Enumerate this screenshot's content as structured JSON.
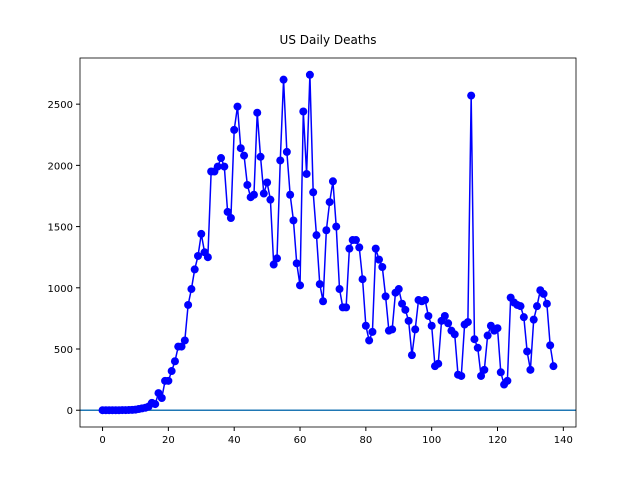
{
  "chart_data": {
    "type": "line",
    "title": "US Daily Deaths",
    "x": [
      0,
      1,
      2,
      3,
      4,
      5,
      6,
      7,
      8,
      9,
      10,
      11,
      12,
      13,
      14,
      15,
      16,
      17,
      18,
      19,
      20,
      21,
      22,
      23,
      24,
      25,
      26,
      27,
      28,
      29,
      30,
      31,
      32,
      33,
      34,
      35,
      36,
      37,
      38,
      39,
      40,
      41,
      42,
      43,
      44,
      45,
      46,
      47,
      48,
      49,
      50,
      51,
      52,
      53,
      54,
      55,
      56,
      57,
      58,
      59,
      60,
      61,
      62,
      63,
      64,
      65,
      66,
      67,
      68,
      69,
      70,
      71,
      72,
      73,
      74,
      75,
      76,
      77,
      78,
      79,
      80,
      81,
      82,
      83,
      84,
      85,
      86,
      87,
      88,
      89,
      90,
      91,
      92,
      93,
      94,
      95,
      96,
      97,
      98,
      99,
      100,
      101,
      102,
      103,
      104,
      105,
      106,
      107,
      108,
      109,
      110,
      111,
      112,
      113,
      114,
      115,
      116,
      117,
      118,
      119,
      120,
      121,
      122,
      123,
      124,
      125,
      126,
      127,
      128,
      129,
      130,
      131,
      132,
      133,
      134,
      135,
      136,
      137
    ],
    "series": [
      {
        "name": "US Daily Deaths",
        "color": "#0000ff",
        "values": [
          0,
          0,
          0,
          0,
          0,
          0,
          1,
          1,
          2,
          3,
          5,
          10,
          15,
          20,
          30,
          60,
          50,
          140,
          100,
          240,
          240,
          320,
          400,
          520,
          520,
          570,
          860,
          990,
          1150,
          1260,
          1440,
          1290,
          1250,
          1950,
          1950,
          1990,
          2060,
          1990,
          1620,
          1570,
          2290,
          2480,
          2140,
          2080,
          1840,
          1740,
          1760,
          2430,
          2070,
          1770,
          1860,
          1720,
          1190,
          1240,
          2040,
          2700,
          2110,
          1760,
          1550,
          1200,
          1020,
          2440,
          1930,
          2740,
          1780,
          1430,
          1030,
          890,
          1470,
          1700,
          1870,
          1500,
          990,
          840,
          840,
          1320,
          1390,
          1390,
          1330,
          1070,
          690,
          570,
          640,
          1320,
          1230,
          1170,
          930,
          650,
          660,
          960,
          990,
          870,
          820,
          730,
          450,
          660,
          900,
          890,
          900,
          770,
          690,
          360,
          380,
          730,
          770,
          710,
          650,
          620,
          290,
          280,
          700,
          720,
          2570,
          580,
          510,
          280,
          330,
          610,
          690,
          650,
          670,
          310,
          210,
          240,
          920,
          880,
          860,
          850,
          760,
          480,
          330,
          740,
          850,
          980,
          950,
          870,
          530,
          360
        ]
      }
    ],
    "hline": {
      "value": 0,
      "color": "#1f77b4"
    },
    "xlim": [
      -6.85,
      143.85
    ],
    "xticks": [
      0,
      20,
      40,
      60,
      80,
      100,
      120,
      140
    ],
    "ylim": [
      -137,
      2877
    ],
    "yticks": [
      0,
      500,
      1000,
      1500,
      2000,
      2500
    ]
  }
}
